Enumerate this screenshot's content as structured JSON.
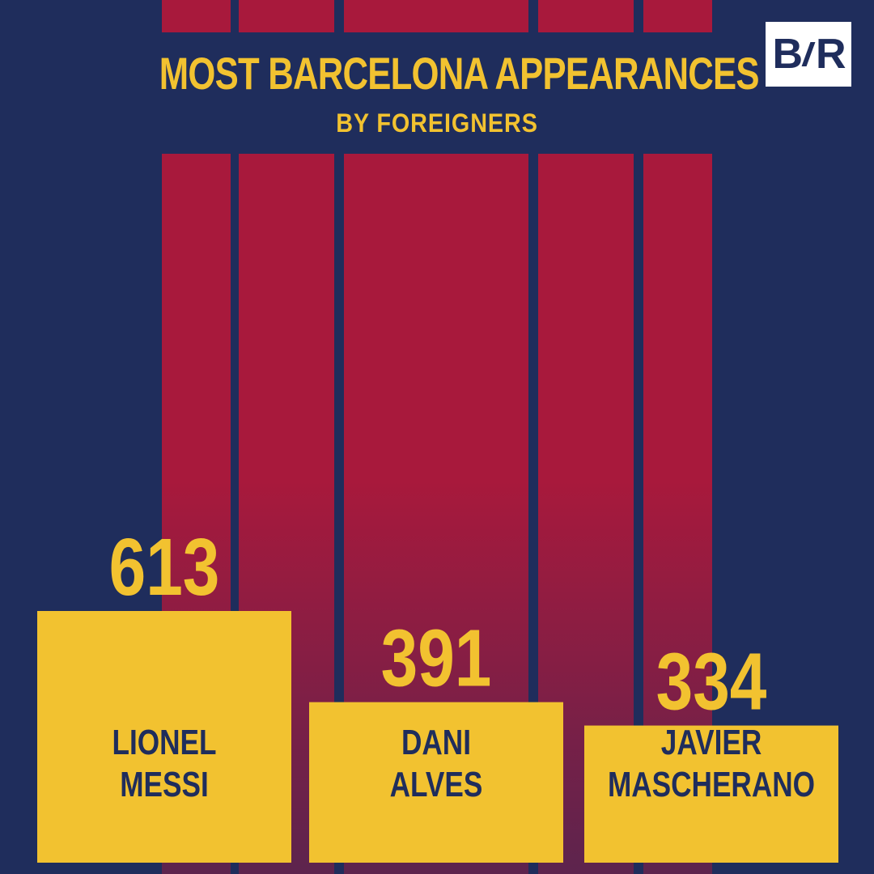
{
  "logo": {
    "text_left": "B",
    "text_right": "R"
  },
  "colors": {
    "navy": "#1f2d5c",
    "claret": "#a8193c",
    "gold": "#f2c230"
  },
  "chart_data": {
    "type": "bar",
    "title": "MOST BARCELONA APPEARANCES",
    "subtitle": "BY FOREIGNERS",
    "categories": [
      [
        "LIONEL",
        "MESSI"
      ],
      [
        "DANI",
        "ALVES"
      ],
      [
        "JAVIER",
        "MASCHERANO"
      ]
    ],
    "values": [
      613,
      391,
      334
    ],
    "value_labels": [
      "613",
      "391",
      "334"
    ],
    "players": [
      "Lionel Messi",
      "Dani Alves",
      "Javier Mascherano"
    ]
  }
}
